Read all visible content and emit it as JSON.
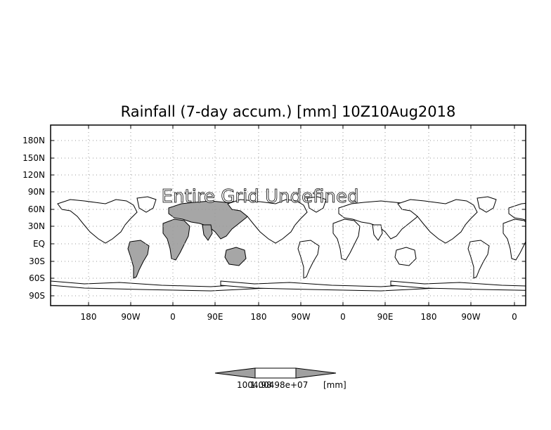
{
  "title": "Rainfall (7-day accum.) [mm] 10Z10Aug2018",
  "overlay_message": "Entire Grid Undefined",
  "map": {
    "y_tick_labels": [
      "180N",
      "150N",
      "120N",
      "90N",
      "60N",
      "30N",
      "EQ",
      "30S",
      "60S",
      "90S"
    ],
    "x_tick_labels": [
      "180",
      "90W",
      "0",
      "90E",
      "180",
      "90W",
      "0",
      "90E",
      "180",
      "90W",
      "0"
    ],
    "grid": true,
    "highlight_color": "#a6a6a6",
    "outline_color": "#000000"
  },
  "colorbar": {
    "left_label": "1004.98",
    "center_label": "1.00498e+07",
    "unit_label": "[mm]",
    "fill_colors": [
      "#a0a0a0",
      "#ffffff",
      "#a0a0a0"
    ]
  }
}
